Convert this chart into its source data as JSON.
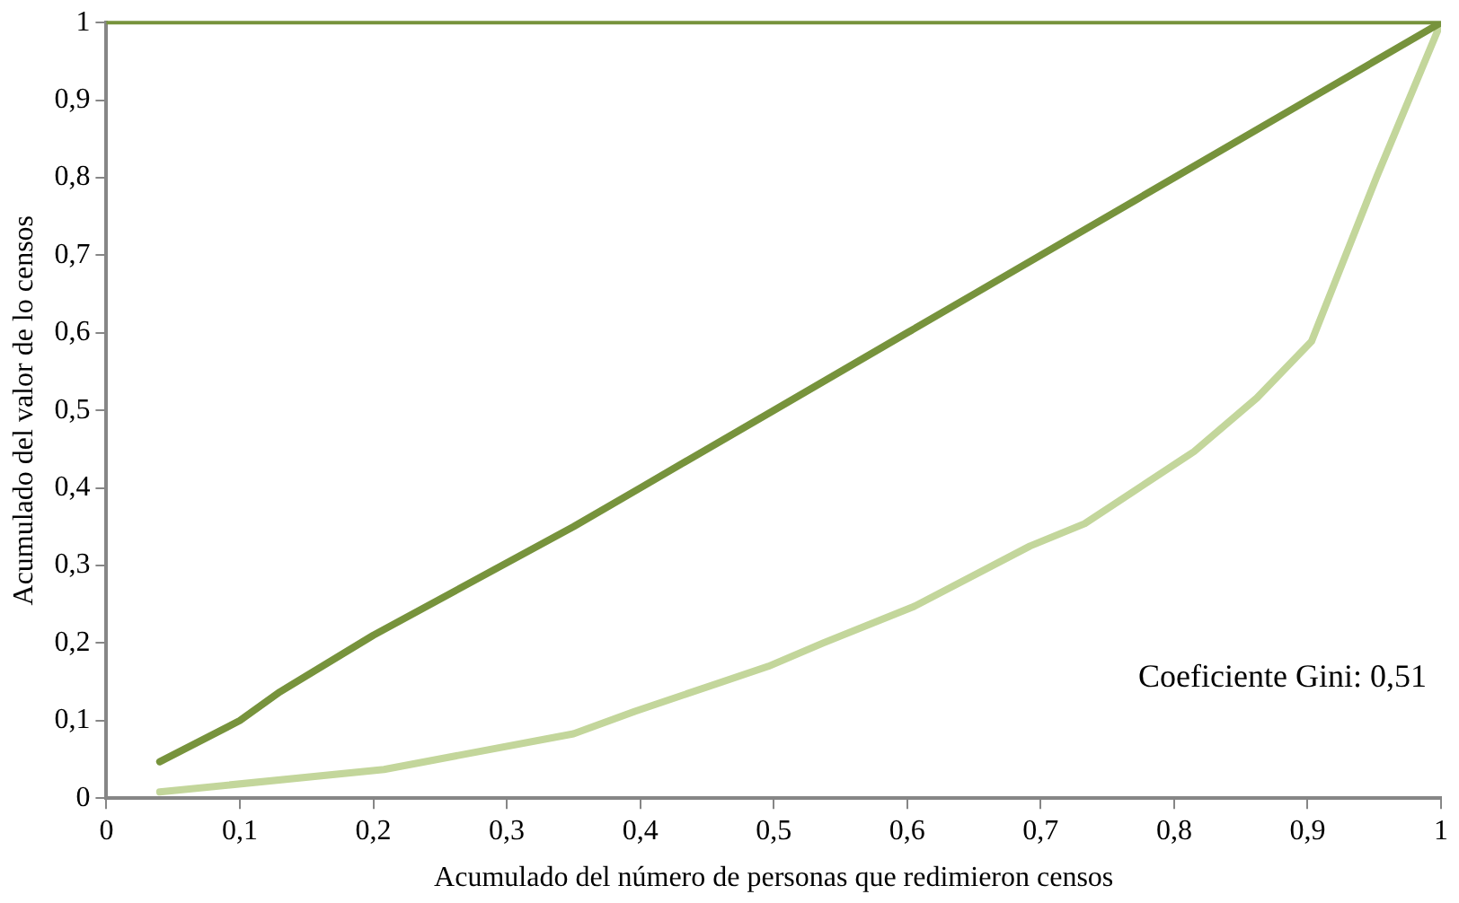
{
  "chart_data": {
    "type": "line",
    "xlabel": "Acumulado del número de personas que redimieron censos",
    "ylabel": "Acumulado del valor de lo censos",
    "xlim": [
      0,
      1
    ],
    "ylim": [
      0,
      1
    ],
    "xticks": [
      0,
      {
        "value": 0.1,
        "label": "0,1"
      },
      {
        "value": 0.2,
        "label": "0,2"
      },
      {
        "value": 0.3,
        "label": "0,3"
      },
      {
        "value": 0.4,
        "label": "0,4"
      },
      {
        "value": 0.5,
        "label": "0,5"
      },
      {
        "value": 0.6,
        "label": "0,6"
      },
      {
        "value": 0.7,
        "label": "0,7"
      },
      {
        "value": 0.8,
        "label": "0,8"
      },
      {
        "value": 0.9,
        "label": "0,9"
      },
      1
    ],
    "yticks": [
      0,
      {
        "value": 0.1,
        "label": "0,1"
      },
      {
        "value": 0.2,
        "label": "0,2"
      },
      {
        "value": 0.3,
        "label": "0,3"
      },
      {
        "value": 0.4,
        "label": "0,4"
      },
      {
        "value": 0.5,
        "label": "0,5"
      },
      {
        "value": 0.6,
        "label": "0,6"
      },
      {
        "value": 0.7,
        "label": "0,7"
      },
      {
        "value": 0.8,
        "label": "0,8"
      },
      {
        "value": 0.9,
        "label": "0,9"
      },
      1
    ],
    "series": [
      {
        "color": "#77933c",
        "x": [
          0.04,
          0.1,
          0.13,
          0.2,
          0.35,
          0.4,
          0.5,
          0.6,
          0.65,
          0.8,
          0.9,
          1
        ],
        "values": [
          0.047,
          0.1,
          0.137,
          0.21,
          0.35,
          0.4,
          0.5,
          0.6,
          0.65,
          0.8,
          0.9,
          1
        ]
      },
      {
        "color": "#c3d69b",
        "x": [
          0.04,
          0.208,
          0.35,
          0.396,
          0.496,
          0.537,
          0.605,
          0.692,
          0.733,
          0.815,
          0.862,
          0.903,
          0.92,
          0.952,
          1
        ],
        "values": [
          0.008,
          0.037,
          0.083,
          0.112,
          0.17,
          0.2,
          0.247,
          0.325,
          0.354,
          0.447,
          0.516,
          0.589,
          0.663,
          0.802,
          1
        ]
      }
    ],
    "ref_lines": [
      {
        "axis": "y",
        "value": 1,
        "color": "#77933c"
      }
    ],
    "annotations": [
      "Coeficiente Gini: 0,51"
    ],
    "grid": false,
    "legend": false,
    "marker": "none",
    "line_style": "solid"
  }
}
